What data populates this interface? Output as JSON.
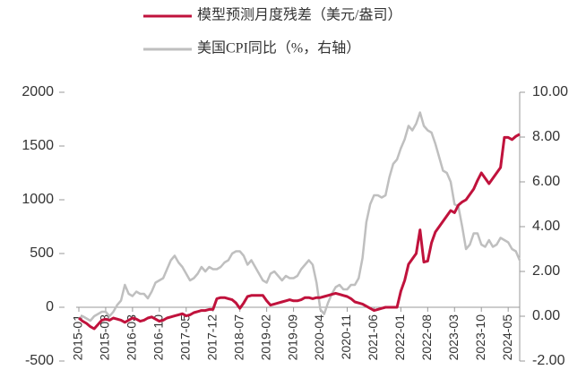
{
  "chart_data": {
    "type": "line",
    "categories": [
      "2015-01",
      null,
      null,
      null,
      null,
      null,
      null,
      "2015-08",
      null,
      null,
      null,
      null,
      null,
      null,
      "2016-03",
      null,
      null,
      null,
      null,
      null,
      null,
      "2016-10",
      null,
      null,
      null,
      null,
      null,
      null,
      "2017-05",
      null,
      null,
      null,
      null,
      null,
      null,
      "2017-12",
      null,
      null,
      null,
      null,
      null,
      null,
      "2018-07",
      null,
      null,
      null,
      null,
      null,
      null,
      "2019-02",
      null,
      null,
      null,
      null,
      null,
      null,
      "2019-09",
      null,
      null,
      null,
      null,
      null,
      null,
      "2020-04",
      null,
      null,
      null,
      null,
      null,
      null,
      "2020-11",
      null,
      null,
      null,
      null,
      null,
      null,
      "2021-06",
      null,
      null,
      null,
      null,
      null,
      null,
      "2022-01",
      null,
      null,
      null,
      null,
      null,
      null,
      "2022-08",
      null,
      null,
      null,
      null,
      null,
      null,
      "2023-03",
      null,
      null,
      null,
      null,
      null,
      null,
      "2023-10",
      null,
      null,
      null,
      null,
      null,
      null,
      "2024-05",
      null,
      null,
      null
    ],
    "series": [
      {
        "name": "模型预测月度残差（美元/盎司）",
        "color": "#c0123c",
        "values": [
          -100,
          -130,
          -150,
          -180,
          -200,
          -160,
          -120,
          -110,
          -120,
          -100,
          -110,
          -120,
          -140,
          -120,
          -100,
          -110,
          -130,
          -120,
          -100,
          -90,
          -110,
          -130,
          -120,
          -100,
          -90,
          -80,
          -70,
          -60,
          -80,
          -70,
          -50,
          -40,
          -30,
          -30,
          -20,
          -20,
          80,
          90,
          90,
          80,
          70,
          40,
          -10,
          40,
          100,
          110,
          110,
          110,
          110,
          60,
          20,
          30,
          40,
          50,
          60,
          70,
          60,
          60,
          70,
          90,
          90,
          80,
          90,
          90,
          100,
          110,
          120,
          130,
          120,
          110,
          100,
          80,
          50,
          40,
          30,
          10,
          -10,
          -30,
          -20,
          -10,
          0,
          0,
          0,
          0,
          150,
          250,
          400,
          450,
          500,
          720,
          420,
          430,
          600,
          700,
          750,
          800,
          850,
          900,
          880,
          950,
          980,
          1000,
          1050,
          1100,
          1180,
          1250,
          1200,
          1150,
          1200,
          1250,
          1300,
          1580,
          1580,
          1560,
          1590,
          1610
        ]
      },
      {
        "name": "美国CPI同比（%，右轴）",
        "color": "#bfbfbf",
        "axis": "y2",
        "values": [
          -0.1,
          0.0,
          -0.1,
          -0.2,
          0.0,
          0.1,
          0.2,
          0.2,
          0.0,
          0.2,
          0.5,
          0.7,
          1.4,
          1.0,
          0.9,
          1.1,
          1.0,
          1.0,
          0.8,
          1.1,
          1.5,
          1.6,
          1.7,
          2.1,
          2.5,
          2.7,
          2.4,
          2.2,
          1.9,
          1.6,
          1.7,
          1.9,
          2.2,
          2.0,
          2.2,
          2.1,
          2.1,
          2.2,
          2.4,
          2.5,
          2.8,
          2.9,
          2.9,
          2.7,
          2.3,
          2.5,
          2.2,
          1.9,
          1.6,
          1.5,
          1.9,
          2.0,
          1.8,
          1.6,
          1.8,
          1.7,
          1.7,
          1.8,
          2.1,
          2.3,
          2.5,
          2.3,
          1.5,
          0.3,
          0.1,
          0.6,
          1.0,
          1.3,
          1.4,
          1.2,
          1.2,
          1.4,
          1.4,
          1.7,
          2.6,
          4.2,
          5.0,
          5.4,
          5.4,
          5.3,
          5.4,
          6.2,
          6.8,
          7.0,
          7.5,
          7.9,
          8.5,
          8.3,
          8.6,
          9.1,
          8.5,
          8.3,
          8.2,
          7.7,
          7.1,
          6.5,
          6.4,
          6.0,
          5.0,
          4.9,
          4.0,
          3.0,
          3.2,
          3.7,
          3.7,
          3.2,
          3.1,
          3.4,
          3.1,
          3.2,
          3.5,
          3.4,
          3.3,
          3.0,
          2.9,
          2.5
        ]
      }
    ],
    "ylim": [
      -500,
      2000
    ],
    "yticks": [
      -500,
      0,
      500,
      1000,
      1500,
      2000
    ],
    "y2lim": [
      -2,
      10
    ],
    "y2ticks": [
      {
        "value": -2,
        "label": "-2.00"
      },
      {
        "value": 0,
        "label": "0.00"
      },
      {
        "value": 2,
        "label": "2.00"
      },
      {
        "value": 4,
        "label": "4.00"
      },
      {
        "value": 6,
        "label": "6.00"
      },
      {
        "value": 8,
        "label": "8.00"
      },
      {
        "value": 10,
        "label": "10.00"
      }
    ],
    "legend": "top"
  }
}
